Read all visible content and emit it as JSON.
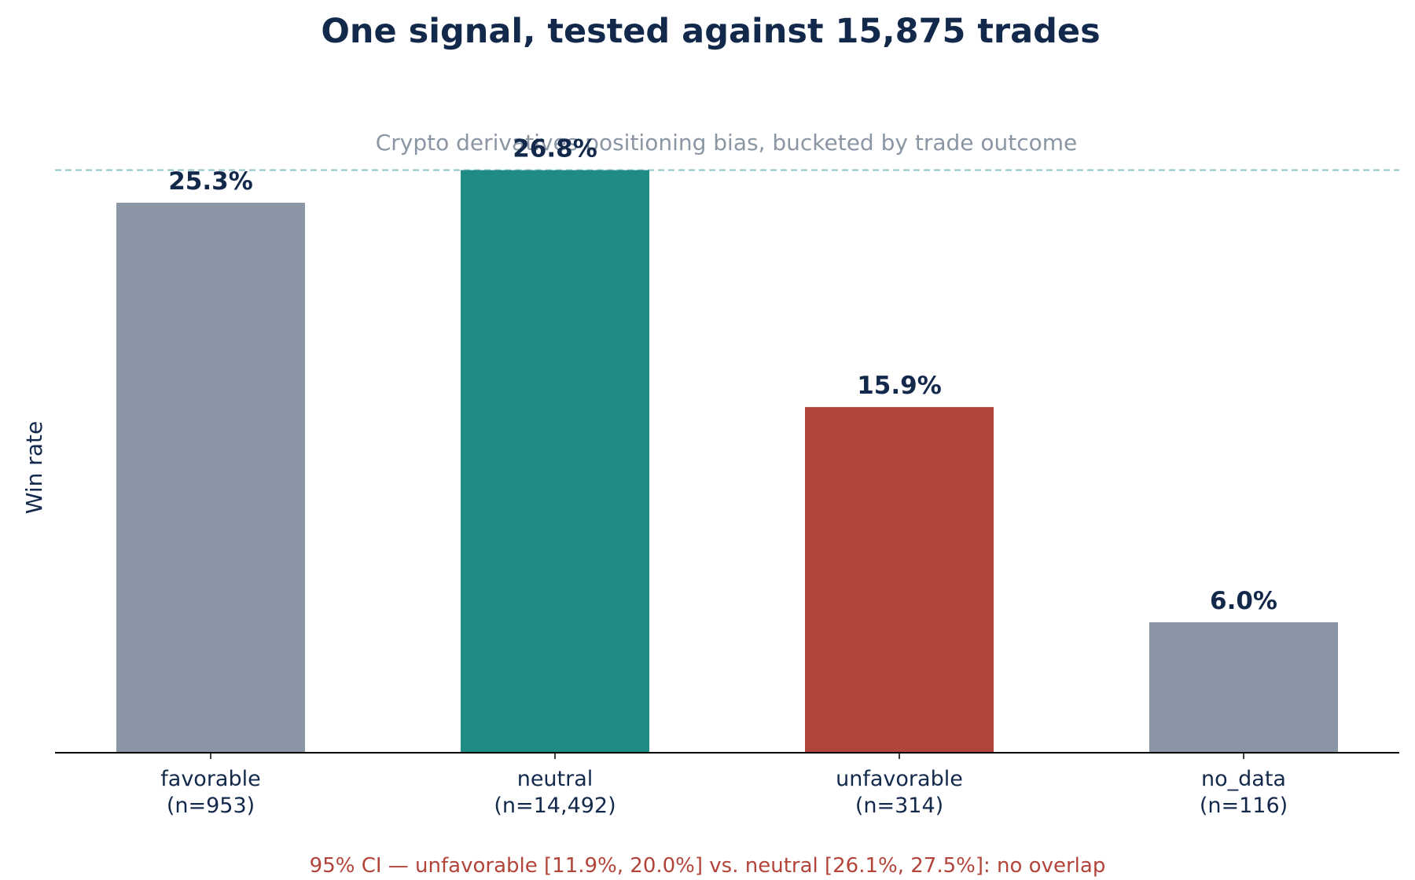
{
  "chart_data": {
    "type": "bar",
    "title": "One signal, tested against 15,875 trades",
    "subtitle": "Crypto derivatives positioning bias, bucketed by trade outcome",
    "xlabel": "",
    "ylabel": "Win rate",
    "categories": [
      "favorable",
      "neutral",
      "unfavorable",
      "no_data"
    ],
    "sample_sizes": [
      "(n=953)",
      "(n=14,492)",
      "(n=314)",
      "(n=116)"
    ],
    "values": [
      25.3,
      26.8,
      15.9,
      6.0
    ],
    "value_labels": [
      "25.3%",
      "26.8%",
      "15.9%",
      "6.0%"
    ],
    "bar_colors": [
      "#8a96a6",
      "#208b84",
      "#b3443a",
      "#8a96a6"
    ],
    "ylim": [
      0,
      30
    ],
    "grid": false,
    "yticks_shown": false,
    "reference_line": {
      "value": 26.8,
      "style": "dashed",
      "color": "#8fc4c9"
    },
    "footnote": "95% CI — unfavorable [11.9%, 20.0%] vs. neutral [26.1%, 27.5%]: no overlap"
  },
  "colors": {
    "text_primary": "#13294b",
    "text_muted": "#8b96a5",
    "accent_red": "#b3443a",
    "axis": "#000000"
  }
}
